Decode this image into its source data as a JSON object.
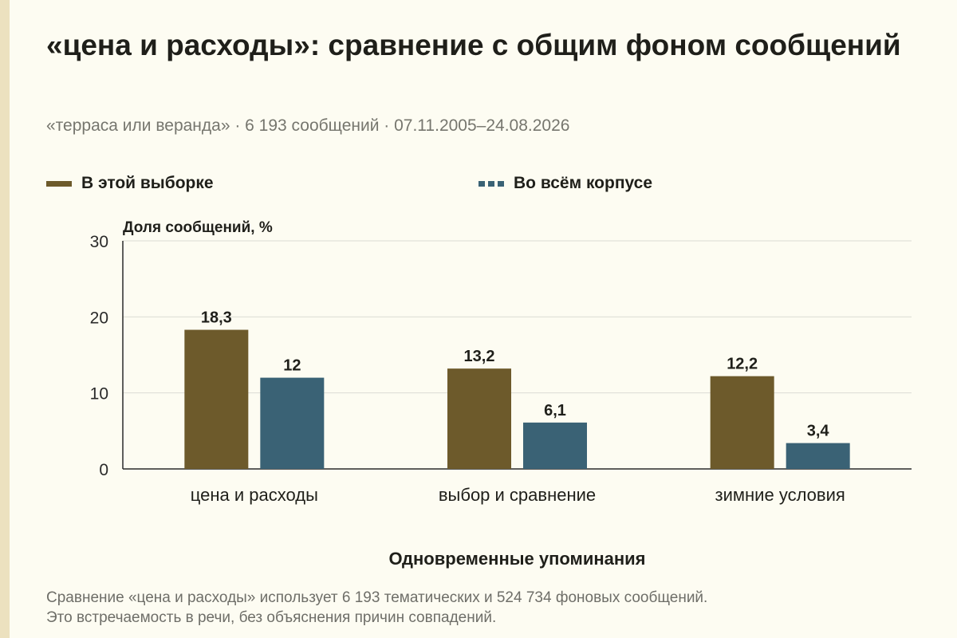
{
  "header": {
    "title": "«цена и расходы»: сравнение с общим фоном сообщений",
    "subtitle": "«терраса или веранда» · 6 193 сообщений · 07.11.2005–24.08.2026"
  },
  "legend": [
    {
      "label": "В этой выборке",
      "color": "#6d5a2b",
      "style": "solid"
    },
    {
      "label": "Во всём корпусе",
      "color": "#3a6275",
      "style": "dashed"
    }
  ],
  "footnote": {
    "line1": "Сравнение «цена и расходы» использует 6 193 тематических и 524 734 фоновых сообщений.",
    "line2": "Это встречаемость в речи, без объяснения причин совпадений."
  },
  "chart_data": {
    "type": "bar",
    "categories": [
      "цена и расходы",
      "выбор и сравнение",
      "зимние условия"
    ],
    "series": [
      {
        "name": "В этой выборке",
        "values": [
          18.3,
          13.2,
          12.2
        ],
        "labels": [
          "18,3",
          "13,2",
          "12,2"
        ],
        "color": "#6d5a2b"
      },
      {
        "name": "Во всём корпусе",
        "values": [
          12,
          6.1,
          3.4
        ],
        "labels": [
          "12",
          "6,1",
          "3,4"
        ],
        "color": "#3a6275"
      }
    ],
    "ylabel": "Доля сообщений, %",
    "xlabel": "Одновременные упоминания",
    "ylim": [
      0,
      30
    ],
    "yticks": [
      0,
      10,
      20,
      30
    ],
    "grid": true,
    "legend_position": "top-left"
  }
}
